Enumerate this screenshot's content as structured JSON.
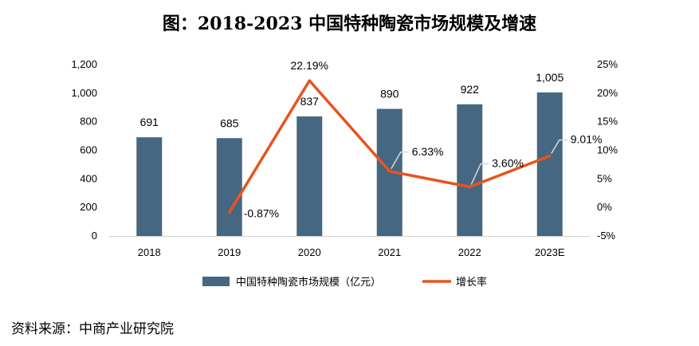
{
  "title": "图：2018-2023 中国特种陶瓷市场规模及增速",
  "source": "资料来源：中商产业研究院",
  "chart_data": {
    "type": "bar",
    "categories": [
      "2018",
      "2019",
      "2020",
      "2021",
      "2022",
      "2023E"
    ],
    "series": [
      {
        "name": "中国特种陶瓷市场规模（亿元）",
        "type": "bar",
        "axis": "left",
        "values": [
          691,
          685,
          837,
          890,
          922,
          1005
        ],
        "labels": [
          "691",
          "685",
          "837",
          "890",
          "922",
          "1,005"
        ],
        "color": "#466782"
      },
      {
        "name": "增长率",
        "type": "line",
        "axis": "right",
        "values": [
          null,
          -0.87,
          22.19,
          6.33,
          3.6,
          9.01
        ],
        "labels": [
          "",
          "-0.87%",
          "22.19%",
          "6.33%",
          "3.60%",
          "9.01%"
        ],
        "color": "#E8541E"
      }
    ],
    "y_left": {
      "ylim": [
        0,
        1200
      ],
      "ticks": [
        "0",
        "200",
        "400",
        "600",
        "800",
        "1,000",
        "1,200"
      ],
      "tick_values": [
        0,
        200,
        400,
        600,
        800,
        1000,
        1200
      ]
    },
    "y_right": {
      "ylim": [
        -5,
        25
      ],
      "ticks": [
        "-5%",
        "0%",
        "5%",
        "10%",
        "15%",
        "20%",
        "25%"
      ],
      "tick_values": [
        -5,
        0,
        5,
        10,
        15,
        20,
        25
      ]
    },
    "grid": false,
    "legend_position": "bottom"
  }
}
